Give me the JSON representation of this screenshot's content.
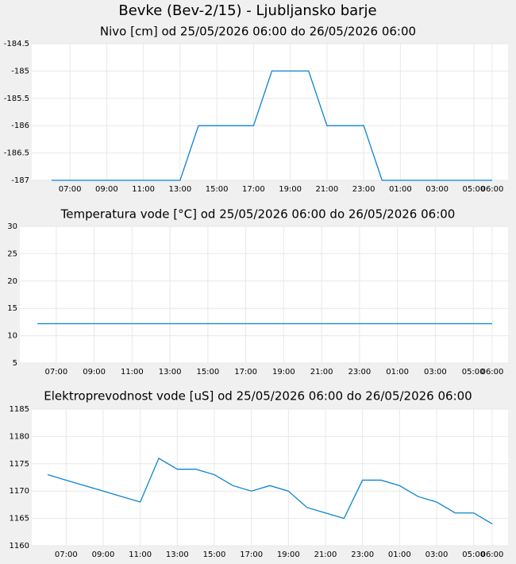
{
  "title": "Bevke (Bev-2/15) - Ljubljansko barje",
  "chart_data": [
    {
      "type": "line",
      "title": "Nivo [cm] od 25/05/2026 06:00 do 26/05/2026 06:00",
      "x": [
        null,
        "07:00",
        null,
        "09:00",
        null,
        "11:00",
        null,
        "13:00",
        null,
        "15:00",
        null,
        "17:00",
        null,
        "19:00",
        null,
        "21:00",
        null,
        "23:00",
        null,
        "01:00",
        null,
        "03:00",
        null,
        "05:00",
        "06:00"
      ],
      "values": [
        -187,
        -187,
        -187,
        -187,
        -187,
        -187,
        -187,
        -187,
        -186,
        -186,
        -186,
        -186,
        -185,
        -185,
        -185,
        -186,
        -186,
        -186,
        -187,
        -187,
        -187,
        -187,
        -187,
        -187,
        -187
      ],
      "color": "#0a84d0",
      "ylim": [
        -187,
        -184.5
      ],
      "yticks": [
        -187,
        -186.5,
        -186,
        -185.5,
        -185,
        -184.5
      ],
      "grid": true
    },
    {
      "type": "line",
      "title": "Temperatura vode [°C] od 25/05/2026 06:00 do 26/05/2026 06:00",
      "x": [
        null,
        "07:00",
        null,
        "09:00",
        null,
        "11:00",
        null,
        "13:00",
        null,
        "15:00",
        null,
        "17:00",
        null,
        "19:00",
        null,
        "21:00",
        null,
        "23:00",
        null,
        "01:00",
        null,
        "03:00",
        null,
        "05:00",
        "06:00"
      ],
      "values": [
        12.2,
        12.2,
        12.2,
        12.2,
        12.2,
        12.2,
        12.2,
        12.2,
        12.2,
        12.2,
        12.2,
        12.2,
        12.2,
        12.2,
        12.2,
        12.2,
        12.2,
        12.2,
        12.2,
        12.2,
        12.2,
        12.2,
        12.2,
        12.2,
        12.2
      ],
      "color": "#0a84d0",
      "ylim": [
        5,
        30
      ],
      "yticks": [
        5,
        10,
        15,
        20,
        25,
        30
      ],
      "grid": true
    },
    {
      "type": "line",
      "title": "Elektroprevodnost vode [uS] od 25/05/2026 06:00 do 26/05/2026 06:00",
      "x": [
        null,
        "07:00",
        null,
        "09:00",
        null,
        "11:00",
        null,
        "13:00",
        null,
        "15:00",
        null,
        "17:00",
        null,
        "19:00",
        null,
        "21:00",
        null,
        "23:00",
        null,
        "01:00",
        null,
        "03:00",
        null,
        "05:00",
        "06:00"
      ],
      "values": [
        1173,
        1172,
        1171,
        1170,
        1169,
        1168,
        1176,
        1174,
        1174,
        1173,
        1171,
        1170,
        1171,
        1170,
        1167,
        1166,
        1165,
        1172,
        1172,
        1171,
        1169,
        1168,
        1166,
        1166,
        1164
      ],
      "color": "#0a84d0",
      "ylim": [
        1160,
        1185
      ],
      "yticks": [
        1160,
        1165,
        1170,
        1175,
        1180,
        1185
      ],
      "grid": true
    }
  ]
}
